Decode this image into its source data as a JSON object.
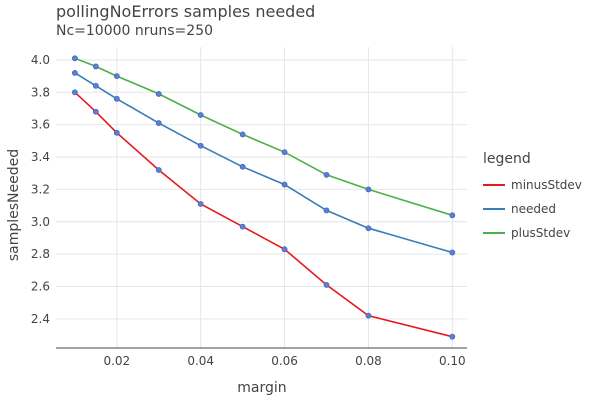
{
  "chart_data": {
    "type": "line",
    "title": "pollingNoErrors samples needed",
    "subtitle": "Nc=10000 nruns=250",
    "xlabel": "margin",
    "ylabel": "samplesNeeded",
    "xlim": [
      0.0055,
      0.1035
    ],
    "ylim": [
      2.22,
      4.08
    ],
    "x_ticks": [
      0.02,
      0.04,
      0.06,
      0.08,
      0.1
    ],
    "x_tick_labels": [
      "0.02",
      "0.04",
      "0.06",
      "0.08",
      "0.10"
    ],
    "y_ticks": [
      2.4,
      2.6,
      2.8,
      3.0,
      3.2,
      3.4,
      3.6,
      3.8,
      4.0
    ],
    "y_tick_labels": [
      "2.4",
      "2.6",
      "2.8",
      "3.0",
      "3.2",
      "3.4",
      "3.6",
      "3.8",
      "4.0"
    ],
    "grid": true,
    "legend_title": "legend",
    "legend_position": "right",
    "x": [
      0.01,
      0.015,
      0.02,
      0.03,
      0.04,
      0.05,
      0.06,
      0.07,
      0.08,
      0.1
    ],
    "series": [
      {
        "name": "minusStdev",
        "color": "#e41a1c",
        "values": [
          3.8,
          3.68,
          3.55,
          3.32,
          3.11,
          2.97,
          2.83,
          2.61,
          2.42,
          2.29
        ]
      },
      {
        "name": "needed",
        "color": "#377eb8",
        "values": [
          3.92,
          3.84,
          3.76,
          3.61,
          3.47,
          3.34,
          3.23,
          3.07,
          2.96,
          2.81
        ]
      },
      {
        "name": "plusStdev",
        "color": "#4daf4a",
        "values": [
          4.01,
          3.96,
          3.9,
          3.79,
          3.66,
          3.54,
          3.43,
          3.29,
          3.2,
          3.04
        ]
      }
    ],
    "marker_color": "#5b7fd4"
  }
}
